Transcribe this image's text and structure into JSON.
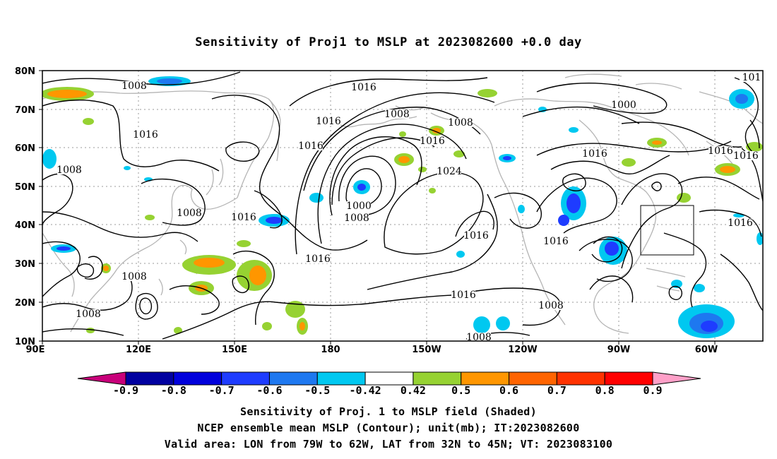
{
  "title": "Sensitivity of Proj1 to MSLP at 2023082600 +0.0 day",
  "captions": [
    "Sensitivity of Proj. 1 to MSLP field (Shaded)",
    "NCEP ensemble mean MSLP (Contour); unit(mb); IT:2023082600",
    "Valid area: LON from 79W to 62W, LAT from 32N to 45N; VT: 2023083100"
  ],
  "map": {
    "lat_labels": [
      "80N",
      "70N",
      "60N",
      "50N",
      "40N",
      "30N",
      "20N",
      "10N"
    ],
    "lon_labels": [
      "90E",
      "120E",
      "150E",
      "180",
      "150W",
      "120W",
      "90W",
      "60W"
    ],
    "contour_labels": [
      {
        "text": "1008"
      },
      {
        "text": "1016"
      },
      {
        "text": "1016"
      },
      {
        "text": "1008"
      },
      {
        "text": "1008"
      },
      {
        "text": "1008"
      },
      {
        "text": "1016"
      },
      {
        "text": "1016"
      },
      {
        "text": "1016"
      },
      {
        "text": "1008"
      },
      {
        "text": "1008"
      },
      {
        "text": "1016"
      },
      {
        "text": "1024"
      },
      {
        "text": "1000"
      },
      {
        "text": "1008"
      },
      {
        "text": "1016"
      },
      {
        "text": "1016"
      },
      {
        "text": "1016"
      },
      {
        "text": "1000"
      },
      {
        "text": "1016"
      },
      {
        "text": "1016"
      },
      {
        "text": "1008"
      },
      {
        "text": "1008"
      },
      {
        "text": "1016"
      },
      {
        "text": "1016"
      },
      {
        "text": "101"
      },
      {
        "text": "1016"
      },
      {
        "text": "1008"
      },
      {
        "text": "1008"
      }
    ],
    "valid_box": {
      "lon_from": "79W",
      "lon_to": "62W",
      "lat_from": "32N",
      "lat_to": "45N"
    }
  },
  "colorbar": {
    "labels": [
      "-0.9",
      "-0.8",
      "-0.7",
      "-0.6",
      "-0.5",
      "-0.42",
      "0.42",
      "0.5",
      "0.6",
      "0.7",
      "0.8",
      "0.9"
    ],
    "colors": [
      "#c8007a",
      "#0000a0",
      "#0000dc",
      "#1e3cff",
      "#1e78f0",
      "#00c8f0",
      "#ffffff",
      "#96d232",
      "#ff9600",
      "#ff6400",
      "#ff3200",
      "#ff0000",
      "#ffa0c8"
    ]
  }
}
